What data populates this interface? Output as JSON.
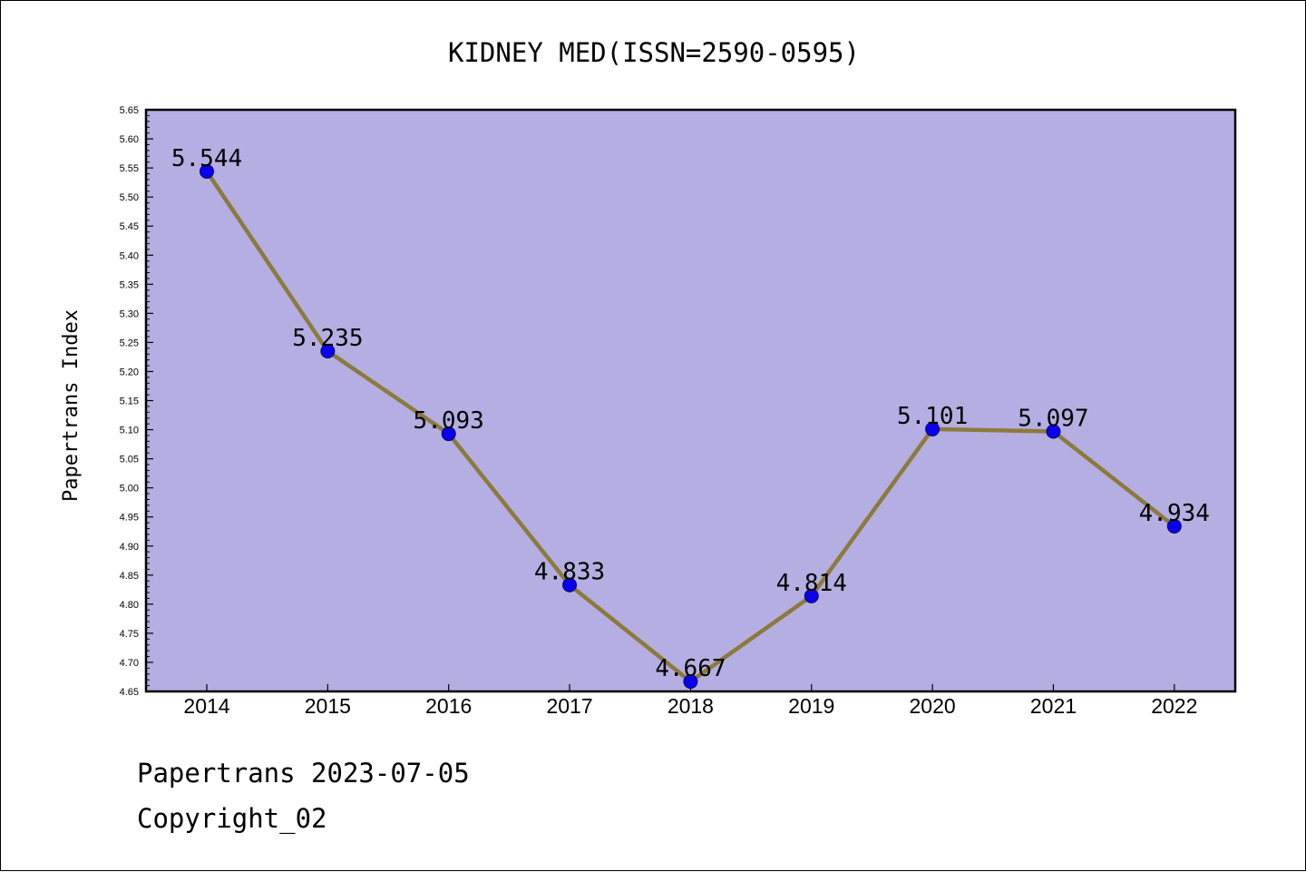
{
  "chart_data": {
    "type": "line",
    "title": "KIDNEY MED(ISSN=2590-0595)",
    "ylabel": "Papertrans Index",
    "xlabel": "",
    "categories": [
      "2014",
      "2015",
      "2016",
      "2017",
      "2018",
      "2019",
      "2020",
      "2021",
      "2022"
    ],
    "values": [
      5.544,
      5.235,
      5.093,
      4.833,
      4.667,
      4.814,
      5.101,
      5.097,
      4.934
    ],
    "data_labels": [
      "5.544",
      "5.235",
      "5.093",
      "4.833",
      "4.667",
      "4.814",
      "5.101",
      "5.097",
      "4.934"
    ],
    "ylim": [
      4.65,
      5.65
    ],
    "yticks": [
      "4.65",
      "4.70",
      "4.75",
      "4.80",
      "4.85",
      "4.90",
      "4.95",
      "5.00",
      "5.05",
      "5.10",
      "5.15",
      "5.20",
      "5.25",
      "5.30",
      "5.35",
      "5.40",
      "5.45",
      "5.50",
      "5.55",
      "5.60",
      "5.65"
    ],
    "grid": false,
    "legend": "none",
    "colors": {
      "plot_background": "#b5aee2",
      "line": "#8c7a3c",
      "marker": "#0a00f0",
      "marker_edge": "#0a0a60"
    }
  },
  "footer": {
    "date_line": "Papertrans 2023-07-05",
    "copyright": "Copyright_02"
  }
}
